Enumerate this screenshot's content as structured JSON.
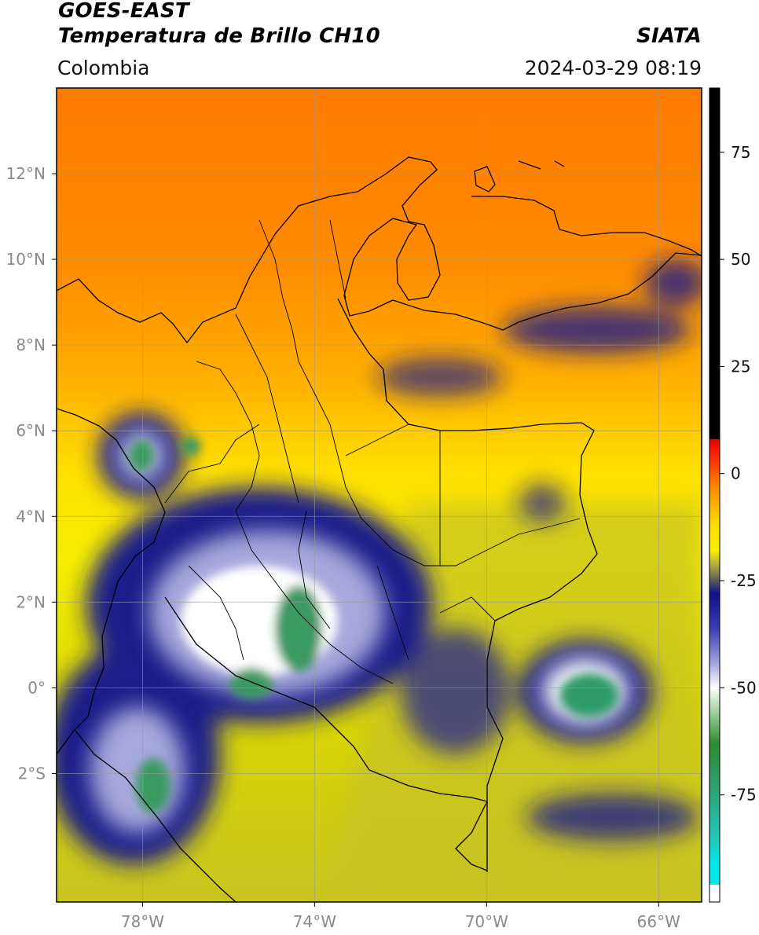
{
  "header": {
    "satellite": "GOES-EAST",
    "product": "Temperatura de Brillo CH10",
    "organization": "SIATA",
    "region": "Colombia",
    "datetime": "2024-03-29 08:19"
  },
  "map": {
    "lon_range": [
      -80,
      -65
    ],
    "lat_range": [
      -5,
      14
    ],
    "x_ticks": [
      {
        "value": -78,
        "label": "78°W"
      },
      {
        "value": -74,
        "label": "74°W"
      },
      {
        "value": -70,
        "label": "70°W"
      },
      {
        "value": -66,
        "label": "66°W"
      }
    ],
    "y_ticks": [
      {
        "value": 12,
        "label": "12°N"
      },
      {
        "value": 10,
        "label": "10°N"
      },
      {
        "value": 8,
        "label": "8°N"
      },
      {
        "value": 6,
        "label": "6°N"
      },
      {
        "value": 4,
        "label": "4°N"
      },
      {
        "value": 2,
        "label": "2°N"
      },
      {
        "value": 0,
        "label": "0°"
      },
      {
        "value": -2,
        "label": "2°S"
      }
    ],
    "gridlines": true
  },
  "colorbar": {
    "range": [
      -100,
      90
    ],
    "ticks": [
      {
        "value": 75,
        "label": "75"
      },
      {
        "value": 50,
        "label": "50"
      },
      {
        "value": 25,
        "label": "25"
      },
      {
        "value": 0,
        "label": "0"
      },
      {
        "value": -25,
        "label": "-25"
      },
      {
        "value": -50,
        "label": "-50"
      },
      {
        "value": -75,
        "label": "-75"
      }
    ],
    "stops": [
      {
        "value": 90,
        "color": "#000000"
      },
      {
        "value": 8.1,
        "color": "#000000"
      },
      {
        "value": 8,
        "color": "#e80000"
      },
      {
        "value": 3,
        "color": "#ff3300"
      },
      {
        "value": -3,
        "color": "#ff8800"
      },
      {
        "value": -12,
        "color": "#ffdd00"
      },
      {
        "value": -18,
        "color": "#f7ef00"
      },
      {
        "value": -21,
        "color": "#b8b040"
      },
      {
        "value": -25,
        "color": "#5a5a5a"
      },
      {
        "value": -28,
        "color": "#101090"
      },
      {
        "value": -36,
        "color": "#3a3ab0"
      },
      {
        "value": -44,
        "color": "#a0a0d8"
      },
      {
        "value": -50,
        "color": "#ffffff"
      },
      {
        "value": -56,
        "color": "#9acc9a"
      },
      {
        "value": -63,
        "color": "#2e8a2e"
      },
      {
        "value": -73,
        "color": "#2fa070"
      },
      {
        "value": -85,
        "color": "#20c8b8"
      },
      {
        "value": -91,
        "color": "#00e8e8"
      },
      {
        "value": -95.9,
        "color": "#00e8e8"
      },
      {
        "value": -96,
        "color": "#ffffff"
      },
      {
        "value": -100,
        "color": "#ffffff"
      }
    ]
  }
}
